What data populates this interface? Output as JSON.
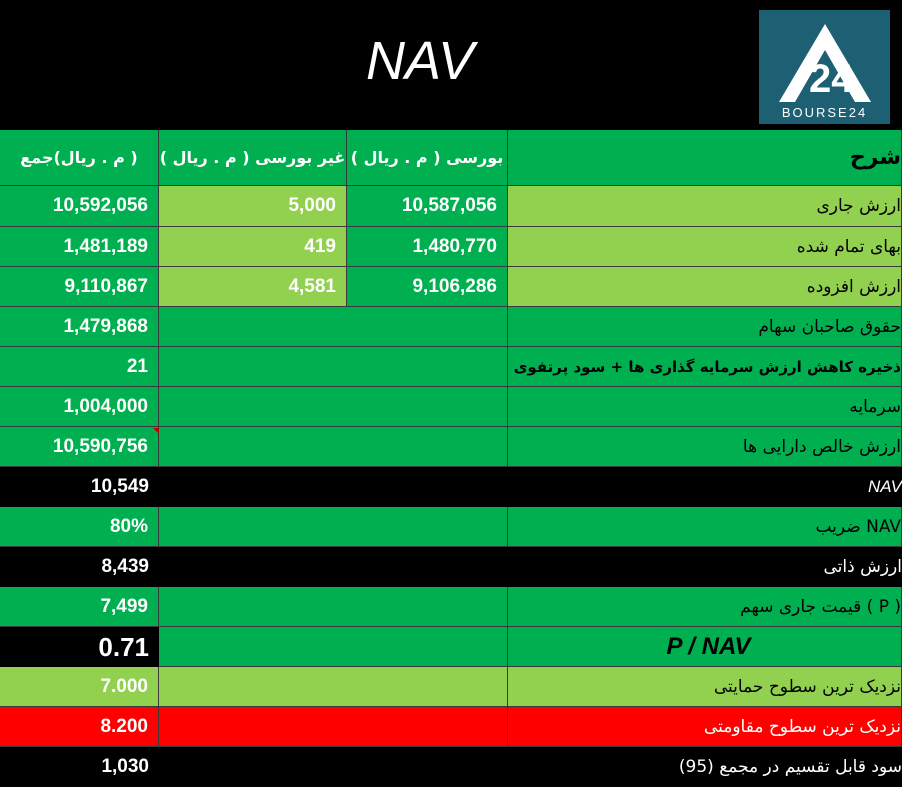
{
  "header": {
    "title": "NAV",
    "logo_text": "BOURSE24"
  },
  "table": {
    "head": {
      "total": "( م . ریال)جمع",
      "otc": "غیر بورسی ( م . ریال )",
      "bourse": "بورسی ( م . ریال )",
      "desc": "شرح"
    },
    "rows": [
      {
        "total": "10,592,056",
        "otc": "5,000",
        "bourse": "10,587,056",
        "label": "ارزش جاری"
      },
      {
        "total": "1,481,189",
        "otc": "419",
        "bourse": "1,480,770",
        "label": "بهای تمام شده"
      },
      {
        "total": "9,110,867",
        "otc": "4,581",
        "bourse": "9,106,286",
        "label": "ارزش افزوده"
      },
      {
        "total": "1,479,868",
        "label": "حقوق صاحبان سهام"
      },
      {
        "total": "21",
        "label": "ذخیره کاهش ارزش سرمایه گذاری ها + سود پرتفوی"
      },
      {
        "total": "1,004,000",
        "label": "سرمایه"
      },
      {
        "total": "10,590,756",
        "label": "ارزش خالص دارایی ها"
      },
      {
        "total": "10,549",
        "label": "NAV"
      },
      {
        "total": "80%",
        "label": "NAV ضریب"
      },
      {
        "total": "8,439",
        "label": "ارزش ذاتی"
      },
      {
        "total": "7,499",
        "label": "( P ) قیمت جاری سهم"
      },
      {
        "total": "0.71",
        "label": "P / NAV"
      },
      {
        "total": "7.000",
        "label": "نزدیک ترین سطوح حمایتی"
      },
      {
        "total": "8.200",
        "label": "نزدیک ترین سطوح مقاومتی"
      },
      {
        "total": "1,030",
        "label": "سود قابل تقسیم در مجمع (95)"
      }
    ]
  },
  "colors": {
    "green_dark": "#00b050",
    "green_light": "#92d050",
    "black": "#000000",
    "red": "#ff0000"
  }
}
